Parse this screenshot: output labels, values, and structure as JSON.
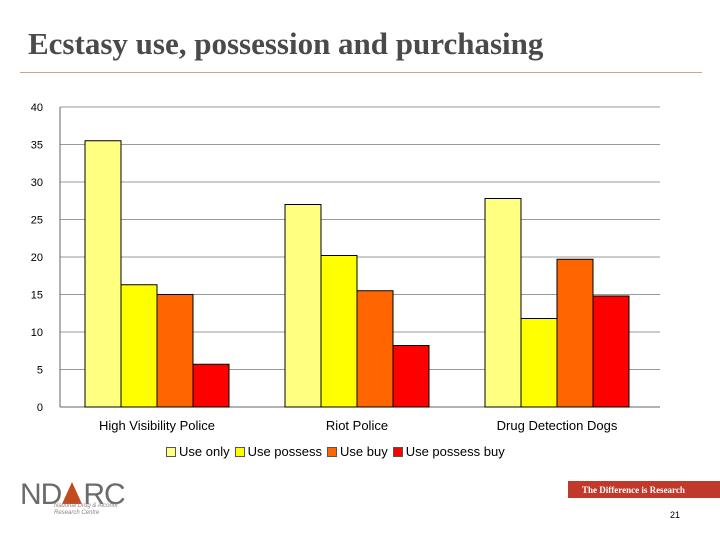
{
  "slide": {
    "title": "Ecstasy use, possession and purchasing",
    "page_number": "21"
  },
  "footer": {
    "logo_pre": "ND",
    "logo_post": "RC",
    "logo_subtitle": "National Drug & Alcohol Research Centre",
    "tagline": "The Difference is Research"
  },
  "chart_data": {
    "type": "bar",
    "categories": [
      "High Visibility Police",
      "Riot Police",
      "Drug Detection Dogs"
    ],
    "series": [
      {
        "name": "Use only",
        "values": [
          35.5,
          27.0,
          27.8
        ],
        "color": "#ffff80"
      },
      {
        "name": "Use possess",
        "values": [
          16.3,
          20.2,
          11.8
        ],
        "color": "#ffff00"
      },
      {
        "name": "Use buy",
        "values": [
          15.0,
          15.5,
          19.7
        ],
        "color": "#ff6600"
      },
      {
        "name": "Use possess buy",
        "values": [
          5.7,
          8.2,
          14.8
        ],
        "color": "#ff0000"
      }
    ],
    "ylim": [
      0,
      40
    ],
    "yticks": [
      "0",
      "5",
      "10",
      "15",
      "20",
      "25",
      "30",
      "35",
      "40"
    ],
    "grid": true,
    "legend_position": "bottom"
  }
}
